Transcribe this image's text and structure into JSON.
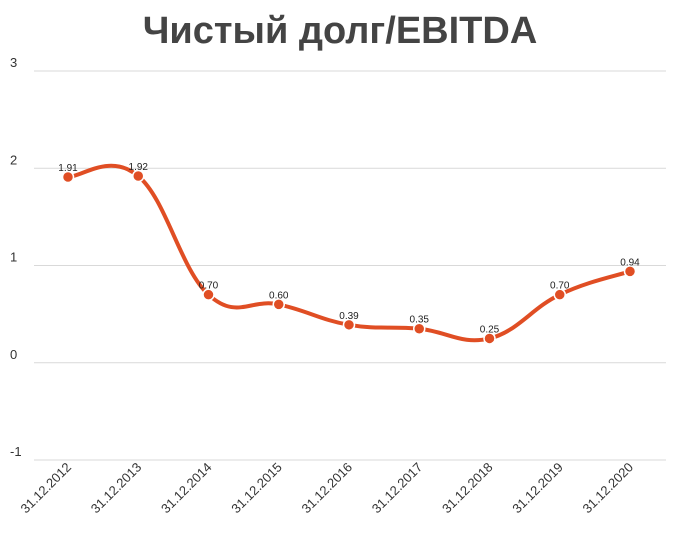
{
  "chart_data": {
    "type": "line",
    "title": "Чистый долг/EBITDA",
    "xlabel": "",
    "ylabel": "",
    "categories": [
      "31.12.2012",
      "31.12.2013",
      "31.12.2014",
      "31.12.2015",
      "31.12.2016",
      "31.12.2017",
      "31.12.2018",
      "31.12.2019",
      "31.12.2020"
    ],
    "series": [
      {
        "values": [
          1.91,
          1.92,
          0.7,
          0.6,
          0.39,
          0.35,
          0.25,
          0.7,
          0.94
        ],
        "data_labels": [
          "1.91",
          "1.92",
          "0.70",
          "0.60",
          "0.39",
          "0.35",
          "0.25",
          "0.70",
          "0.94"
        ],
        "color": "#e04e24"
      }
    ],
    "ylim": [
      -1,
      3
    ],
    "yticks": [
      "3",
      "2",
      "1",
      "0",
      "-1"
    ],
    "ytick_values": [
      3,
      2,
      1,
      0,
      -1
    ],
    "grid": true,
    "legend": "none",
    "smooth": true
  }
}
